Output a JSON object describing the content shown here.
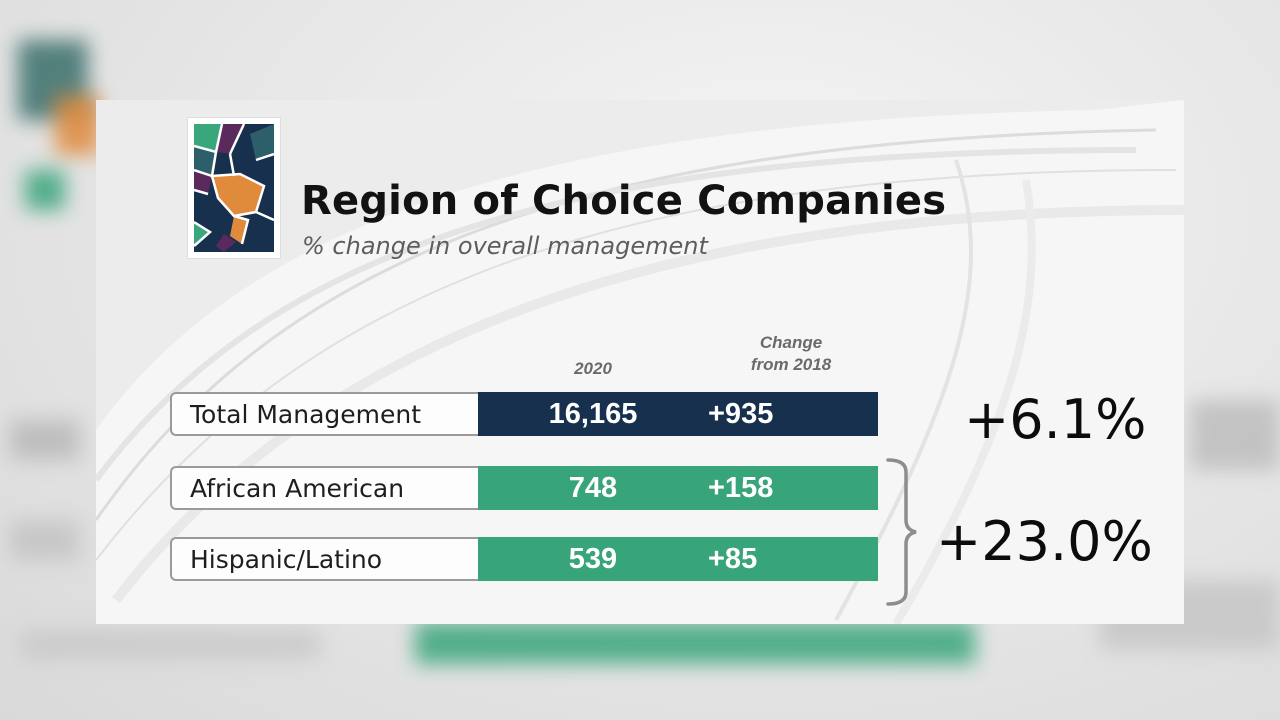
{
  "slide": {
    "title": "Region of Choice Companies",
    "subtitle": "% change in overall management",
    "columns": {
      "year": "2020",
      "change_line1": "Change",
      "change_line2": "from 2018"
    },
    "rows": [
      {
        "label": "Total Management",
        "value_2020": "16,165",
        "change": "+935",
        "color": "#16304e"
      },
      {
        "label": "African American",
        "value_2020": "748",
        "change": "+158",
        "color": "#38a47a"
      },
      {
        "label": "Hispanic/Latino",
        "value_2020": "539",
        "change": "+85",
        "color": "#38a47a"
      }
    ],
    "percent_total": "+6.1%",
    "percent_minority": "+23.0%"
  },
  "logo_icon": "region-of-choice-logo",
  "colors": {
    "navy": "#16304e",
    "green": "#38a47a",
    "orange": "#e08a3c",
    "purple": "#5a2a5c"
  }
}
